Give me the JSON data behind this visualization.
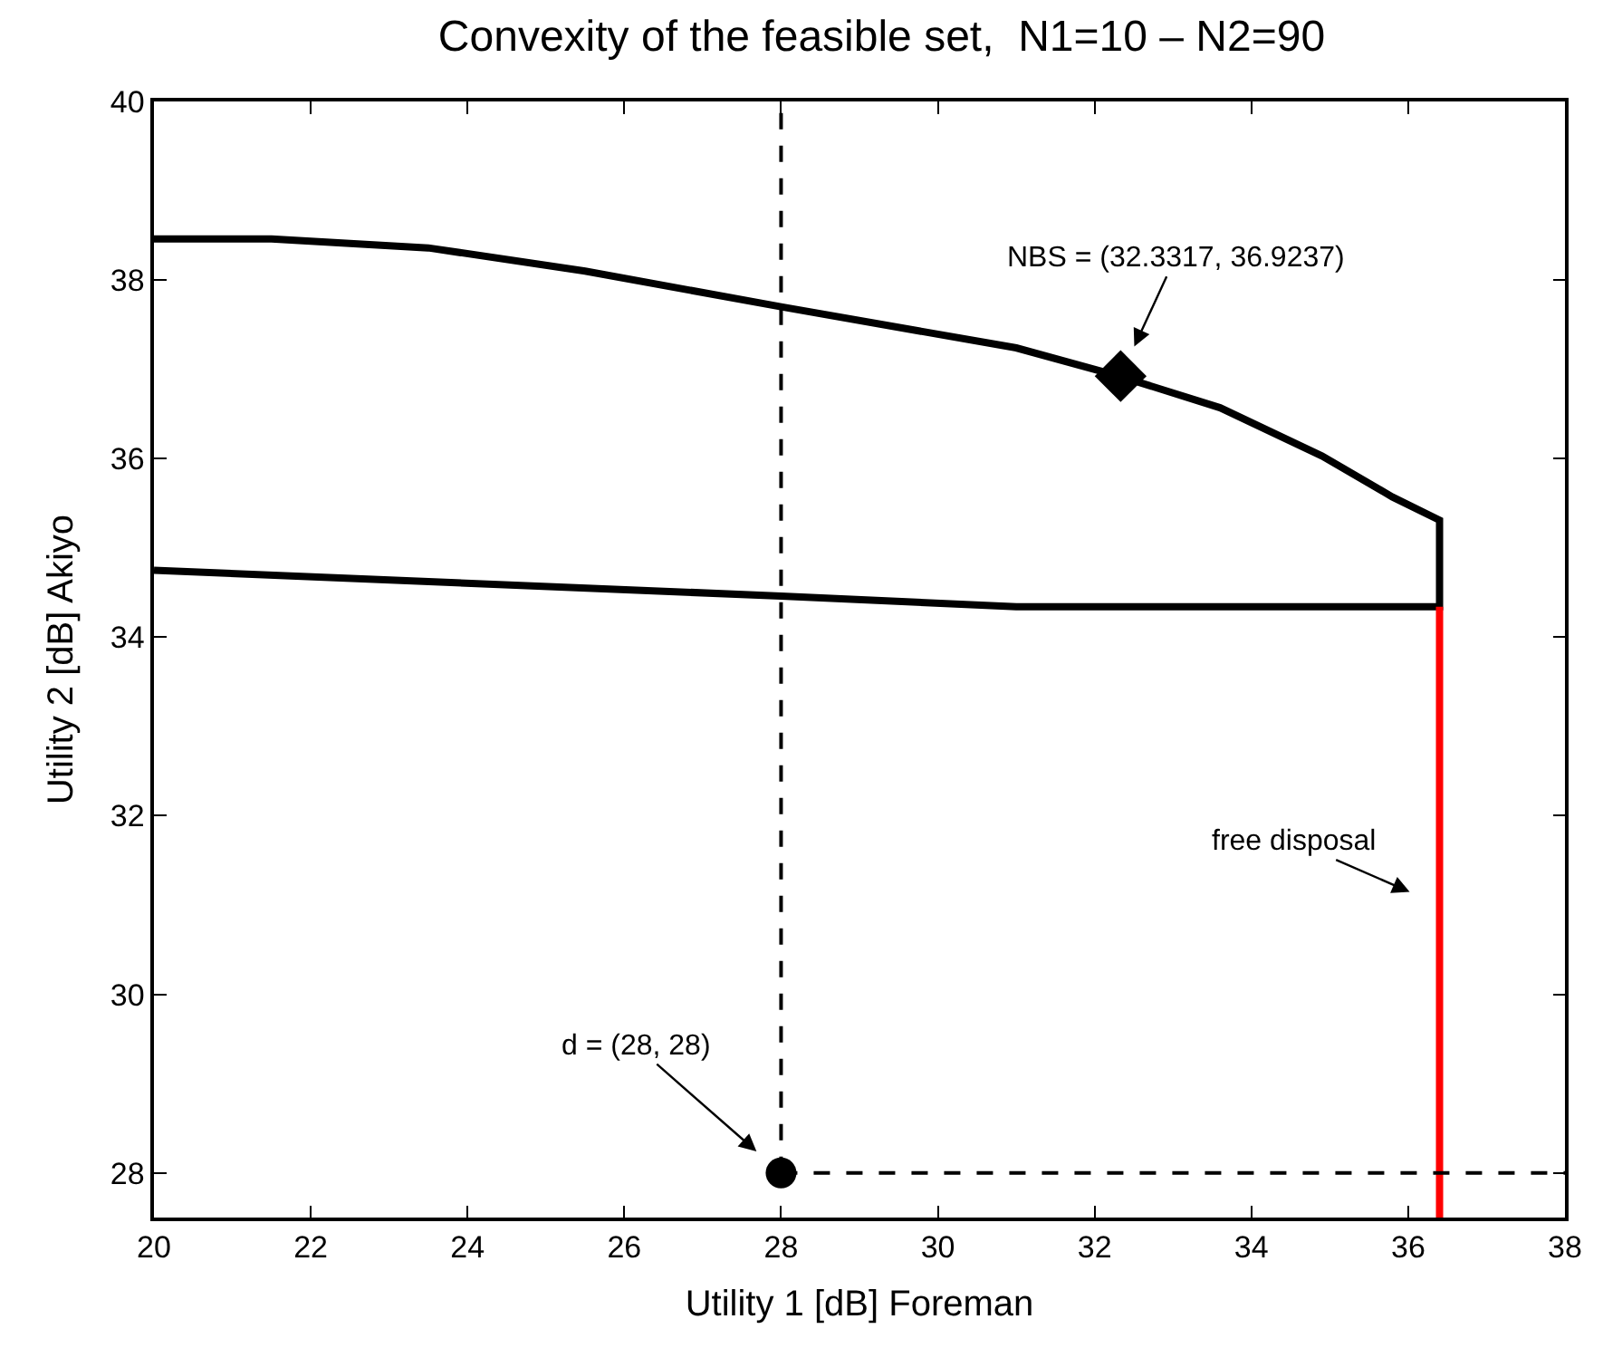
{
  "chart_data": {
    "type": "line",
    "title": "Convexity of the feasible set,  N1=10 – N2=90",
    "xlabel": "Utility 1 [dB] Foreman",
    "ylabel": "Utility 2 [dB] Akiyo",
    "xlim": [
      20,
      38
    ],
    "xticks": [
      20,
      22,
      24,
      26,
      28,
      30,
      32,
      34,
      36,
      38
    ],
    "ylim": [
      27.5,
      40
    ],
    "yticks": [
      28,
      30,
      32,
      34,
      36,
      38,
      40
    ],
    "series": [
      {
        "color": "#000000",
        "line_style": "solid",
        "marker": "none",
        "x": [
          20,
          21.5,
          23.5,
          25.5,
          28,
          31,
          32.33,
          33.6,
          34.9,
          35.8,
          36.4,
          36.4,
          31,
          28,
          20
        ],
        "values": [
          38.46,
          38.46,
          38.36,
          38.1,
          37.7,
          37.24,
          36.92,
          36.57,
          36.03,
          35.57,
          35.31,
          34.34,
          34.34,
          34.46,
          34.75
        ]
      },
      {
        "color": "#ff0000",
        "line_style": "solid",
        "marker": "none",
        "x": [
          36.4,
          36.4
        ],
        "values": [
          27.5,
          34.34
        ]
      },
      {
        "color": "#000000",
        "line_style": "dashed",
        "marker": "none",
        "x": [
          28,
          28
        ],
        "values": [
          28,
          40
        ]
      },
      {
        "color": "#000000",
        "line_style": "dashed",
        "marker": "none",
        "x": [
          28,
          38
        ],
        "values": [
          28,
          28
        ]
      },
      {
        "type": "scatter",
        "color": "#000000",
        "marker": "diamond",
        "x": [
          32.3317
        ],
        "values": [
          36.9237
        ]
      },
      {
        "type": "scatter",
        "color": "#000000",
        "marker": "circle",
        "x": [
          28
        ],
        "values": [
          28
        ]
      }
    ],
    "annotations": [
      {
        "text": "NBS = (32.3317, 36.9237)",
        "x": 32.3317,
        "y": 36.9237
      },
      {
        "text": "d = (28, 28)",
        "x": 28,
        "y": 28
      },
      {
        "text": "free disposal",
        "x": 36.4,
        "y": 31
      }
    ]
  }
}
